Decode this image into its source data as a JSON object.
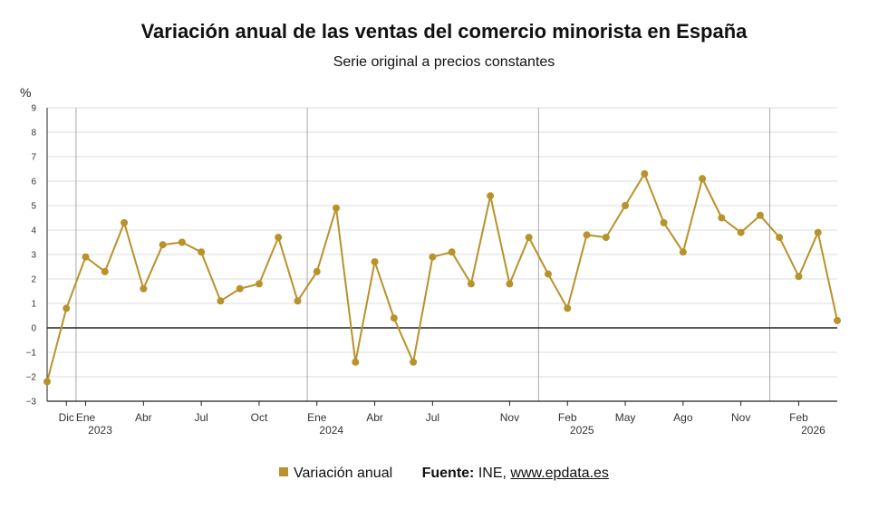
{
  "title": "Variación anual de las ventas del comercio minorista en España",
  "subtitle": "Serie original a precios constantes",
  "source": {
    "label": "Fuente:",
    "text": "INE,",
    "link": "www.epdata.es"
  },
  "colors": {
    "series": "#b8922a",
    "zero_line": "#222222",
    "grid": "#dcdcdc",
    "year_divider": "#aaaaaa",
    "axis": "#222222"
  },
  "chart_data": {
    "type": "line",
    "ylabel": "%",
    "ylim": [
      -3,
      9
    ],
    "y_ticks": [
      -3,
      -2,
      -1,
      0,
      1,
      2,
      3,
      4,
      5,
      6,
      7,
      8,
      9
    ],
    "grid": true,
    "legend": "bottom",
    "x": [
      "2022-11",
      "2022-12",
      "2023-01",
      "2023-02",
      "2023-03",
      "2023-04",
      "2023-05",
      "2023-06",
      "2023-07",
      "2023-08",
      "2023-09",
      "2023-10",
      "2023-11",
      "2023-12",
      "2024-01",
      "2024-02",
      "2024-03",
      "2024-04",
      "2024-05",
      "2024-06",
      "2024-07",
      "2024-08",
      "2024-09",
      "2024-10",
      "2024-11",
      "2024-12",
      "2025-01",
      "2025-02",
      "2025-03",
      "2025-04",
      "2025-05",
      "2025-06",
      "2025-07",
      "2025-08",
      "2025-09",
      "2025-10",
      "2025-11",
      "2025-12",
      "2026-01",
      "2026-02",
      "2026-03",
      "2026-04"
    ],
    "series": [
      {
        "name": "Variación anual",
        "values": [
          -2.2,
          0.8,
          2.9,
          2.3,
          4.3,
          1.6,
          3.4,
          3.5,
          3.1,
          1.1,
          1.6,
          1.8,
          3.7,
          1.1,
          2.3,
          4.9,
          -1.4,
          2.7,
          0.4,
          -1.4,
          2.9,
          3.1,
          1.8,
          5.4,
          1.8,
          3.7,
          2.2,
          0.8,
          3.8,
          3.7,
          5.0,
          6.3,
          4.3,
          3.1,
          6.1,
          4.5,
          3.9,
          4.6,
          3.7,
          2.1,
          3.9,
          0.3
        ]
      }
    ],
    "x_tick_labels": [
      {
        "x": "2022-12",
        "label": "Dic"
      },
      {
        "x": "2023-01",
        "label": "Ene",
        "year": "2023"
      },
      {
        "x": "2023-04",
        "label": "Abr"
      },
      {
        "x": "2023-07",
        "label": "Jul"
      },
      {
        "x": "2023-10",
        "label": "Oct"
      },
      {
        "x": "2024-01",
        "label": "Ene",
        "year": "2024"
      },
      {
        "x": "2024-04",
        "label": "Abr"
      },
      {
        "x": "2024-07",
        "label": "Jul"
      },
      {
        "x": "2024-11",
        "label": "Nov"
      },
      {
        "x": "2025-02",
        "label": "Feb",
        "year": "2025"
      },
      {
        "x": "2025-05",
        "label": "May"
      },
      {
        "x": "2025-08",
        "label": "Ago"
      },
      {
        "x": "2025-11",
        "label": "Nov"
      },
      {
        "x": "2026-02",
        "label": "Feb",
        "year": "2026"
      }
    ],
    "year_dividers": [
      "2023-01",
      "2024-01",
      "2025-01",
      "2026-01"
    ]
  }
}
